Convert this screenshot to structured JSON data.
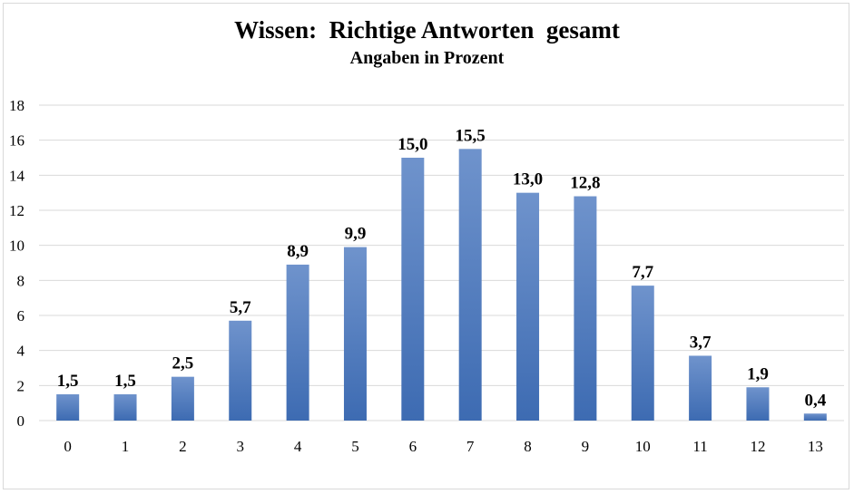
{
  "chart_data": {
    "type": "bar",
    "title": "Wissen:  Richtige Antworten  gesamt",
    "subtitle": "Angaben in Prozent",
    "xlabel": "",
    "ylabel": "",
    "categories": [
      "0",
      "1",
      "2",
      "3",
      "4",
      "5",
      "6",
      "7",
      "8",
      "9",
      "10",
      "11",
      "12",
      "13"
    ],
    "values": [
      1.5,
      1.5,
      2.5,
      5.7,
      8.9,
      9.9,
      15.0,
      15.5,
      13.0,
      12.8,
      7.7,
      3.7,
      1.9,
      0.4
    ],
    "value_labels": [
      "1,5",
      "1,5",
      "2,5",
      "5,7",
      "8,9",
      "9,9",
      "15,0",
      "15,5",
      "13,0",
      "12,8",
      "7,7",
      "3,7",
      "1,9",
      "0,4"
    ],
    "y_ticks": [
      "0",
      "2",
      "4",
      "6",
      "8",
      "10",
      "12",
      "14",
      "16",
      "18"
    ],
    "ylim": [
      0,
      18
    ],
    "grid": true,
    "legend": "none",
    "colors": {
      "bar_top": "#6f93cc",
      "bar_bottom": "#3d6bb2",
      "grid": "#d9d9d9",
      "axis": "#d9d9d9"
    }
  }
}
